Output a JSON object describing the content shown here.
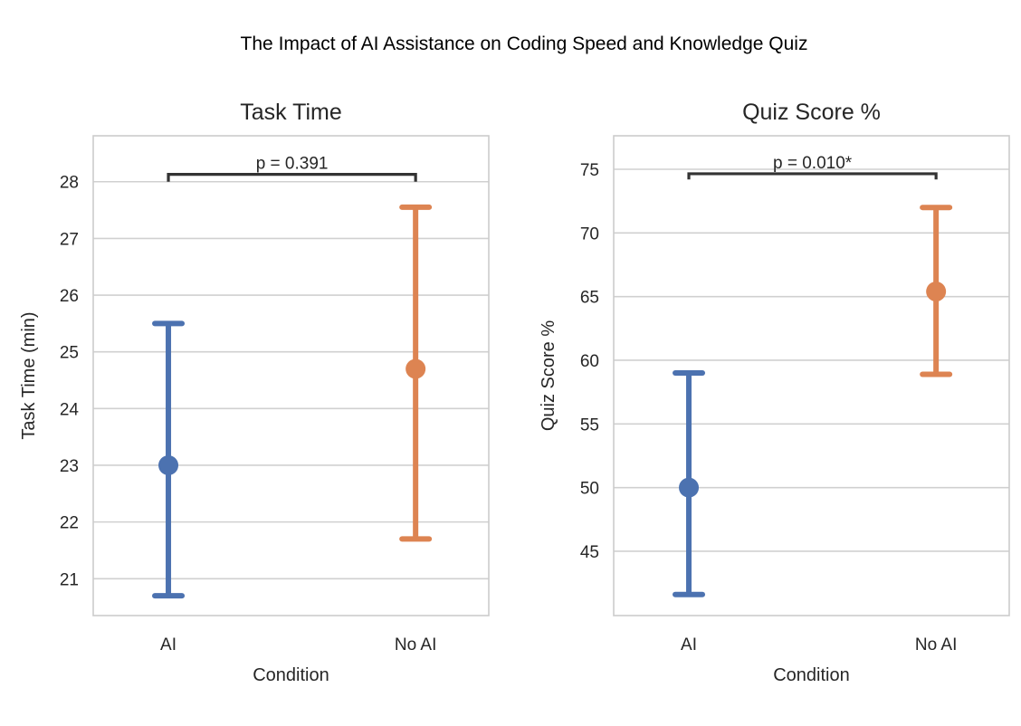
{
  "figure": {
    "suptitle": "The Impact of AI Assistance on Coding Speed and Knowledge Quiz"
  },
  "colors": {
    "AI": "#4c72b0",
    "No AI": "#dd8452",
    "grid": "#d0d0d0",
    "spine": "#cccccc",
    "bracket": "#333333"
  },
  "chart_data": [
    {
      "type": "pointplot-errorbar",
      "title": "Task Time",
      "xlabel": "Condition",
      "ylabel": "Task Time (min)",
      "categories": [
        "AI",
        "No AI"
      ],
      "series": [
        {
          "name": "AI",
          "mean": 23.0,
          "ci_low": 20.7,
          "ci_high": 25.5
        },
        {
          "name": "No AI",
          "mean": 24.7,
          "ci_low": 21.7,
          "ci_high": 27.55
        }
      ],
      "ylim": [
        20.35,
        28.81
      ],
      "yticks": [
        21,
        22,
        23,
        24,
        25,
        26,
        27,
        28
      ],
      "grid": true,
      "annotation": {
        "text": "p = 0.391",
        "bracket_y": 28.13,
        "bracket_drop_to": 28.0,
        "between": [
          "AI",
          "No AI"
        ]
      }
    },
    {
      "type": "pointplot-errorbar",
      "title": "Quiz Score %",
      "xlabel": "Condition",
      "ylabel": "Quiz Score %",
      "categories": [
        "AI",
        "No AI"
      ],
      "series": [
        {
          "name": "AI",
          "mean": 50.0,
          "ci_low": 41.6,
          "ci_high": 59.0
        },
        {
          "name": "No AI",
          "mean": 65.4,
          "ci_low": 58.9,
          "ci_high": 72.0
        }
      ],
      "ylim": [
        39.95,
        77.63
      ],
      "yticks": [
        45,
        50,
        55,
        60,
        65,
        70,
        75
      ],
      "grid": true,
      "annotation": {
        "text": "p = 0.010*",
        "bracket_y": 74.65,
        "bracket_drop_to": 74.2,
        "between": [
          "AI",
          "No AI"
        ]
      }
    }
  ]
}
